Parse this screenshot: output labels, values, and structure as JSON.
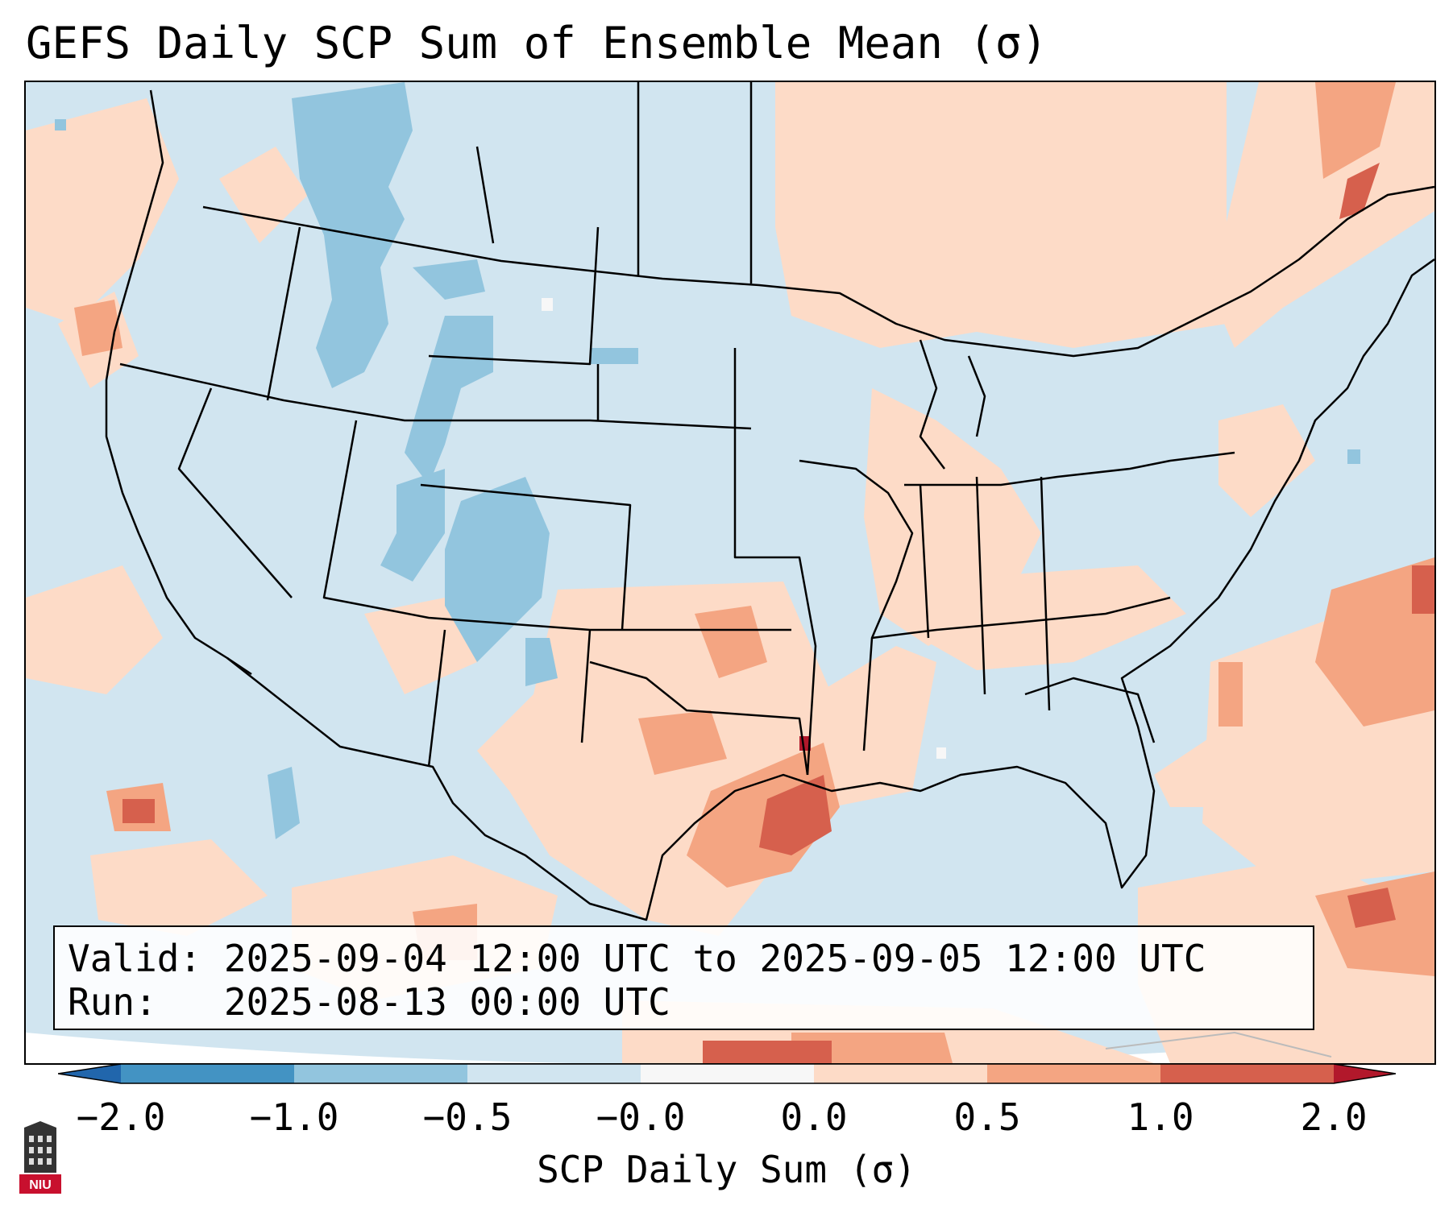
{
  "title": "GEFS Daily SCP Sum of Ensemble Mean (σ)",
  "info_box": {
    "valid_label": "Valid:",
    "valid_value": "2025-09-04 12:00 UTC to 2025-09-05 12:00 UTC",
    "run_label": "Run:",
    "run_value": "2025-08-13 00:00 UTC"
  },
  "colorbar": {
    "label": "SCP Daily Sum (σ)",
    "ticks": [
      "−2.0",
      "−1.0",
      "−0.5",
      "−0.0",
      "0.0",
      "0.5",
      "1.0",
      "2.0"
    ],
    "colors": [
      "#4393c3",
      "#92c5de",
      "#d1e5f0",
      "#f7f7f7",
      "#fddbc7",
      "#f4a582",
      "#d6604d"
    ],
    "extend_low_color": "#2166ac",
    "extend_high_color": "#b2182b"
  },
  "map": {
    "region": "Contiguous United States",
    "background_class": "-0.5 to -0.0",
    "anomalies": [
      {
        "area": "Idaho / Montana / Wyoming Rockies",
        "class": "-1.0 to -0.5"
      },
      {
        "area": "Colorado / Utah",
        "class": "-1.0 to -0.5"
      },
      {
        "area": "Texas / Oklahoma",
        "class": "0.0 to 0.5"
      },
      {
        "area": "Southeast Texas coast",
        "class": "0.5 to 1.0"
      },
      {
        "area": "Southern Canada / Great Lakes",
        "class": "0.0 to 0.5"
      },
      {
        "area": "Western Atlantic",
        "class": "0.5 to 1.0"
      }
    ]
  },
  "logo": {
    "text": "NIU"
  }
}
